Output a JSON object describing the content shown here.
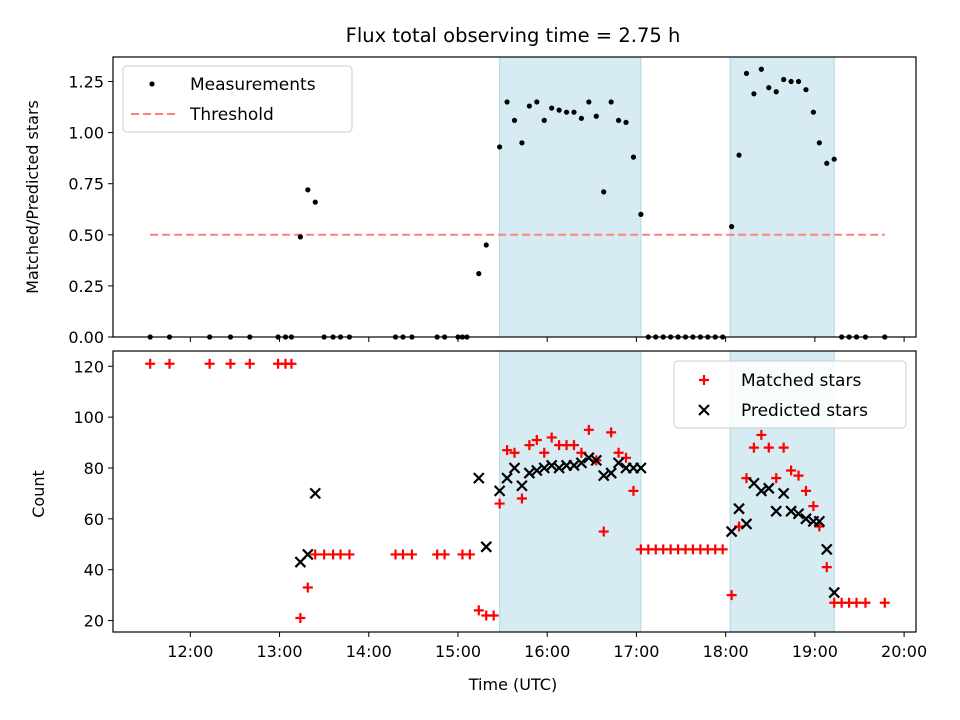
{
  "title": "Flux total observing time = 2.75 h",
  "colors": {
    "shade": "#add8e6",
    "threshold": "#ff7f7f",
    "matched": "#ff0000",
    "predicted": "#000000",
    "measurement": "#000000"
  },
  "chart_data": [
    {
      "type": "scatter",
      "ylabel": "Matched/Predicted stars",
      "xlim": [
        "11:08",
        "20:08"
      ],
      "ylim": [
        0,
        1.37
      ],
      "y_ticks": [
        0,
        0.25,
        0.5,
        0.75,
        1.0,
        1.25
      ],
      "y_tick_labels": [
        "0.00",
        "0.25",
        "0.50",
        "0.75",
        "1.00",
        "1.25"
      ],
      "legend": [
        "Measurements",
        "Threshold"
      ],
      "legend_position": "top-left",
      "shaded_intervals": [
        [
          "15:28",
          "17:03"
        ],
        [
          "18:03",
          "19:13"
        ]
      ],
      "threshold": {
        "value": 0.5,
        "x": [
          "11:33",
          "19:47"
        ]
      },
      "series": [
        {
          "name": "Measurements",
          "points": [
            [
              "11:33",
              0
            ],
            [
              "11:46",
              0
            ],
            [
              "12:13",
              0
            ],
            [
              "12:27",
              0
            ],
            [
              "12:40",
              0
            ],
            [
              "12:59",
              0
            ],
            [
              "13:04",
              0
            ],
            [
              "13:08",
              0
            ],
            [
              "13:14",
              0.49
            ],
            [
              "13:19",
              0.72
            ],
            [
              "13:24",
              0.66
            ],
            [
              "13:30",
              0
            ],
            [
              "13:36",
              0
            ],
            [
              "13:41",
              0
            ],
            [
              "13:47",
              0
            ],
            [
              "14:18",
              0
            ],
            [
              "14:23",
              0
            ],
            [
              "14:29",
              0
            ],
            [
              "14:46",
              0
            ],
            [
              "14:51",
              0
            ],
            [
              "15:00",
              0
            ],
            [
              "15:03",
              0
            ],
            [
              "15:06",
              0
            ],
            [
              "15:14",
              0.31
            ],
            [
              "15:19",
              0.45
            ],
            [
              "15:28",
              0.93
            ],
            [
              "15:33",
              1.15
            ],
            [
              "15:38",
              1.06
            ],
            [
              "15:43",
              0.95
            ],
            [
              "15:48",
              1.13
            ],
            [
              "15:53",
              1.15
            ],
            [
              "15:58",
              1.06
            ],
            [
              "16:03",
              1.12
            ],
            [
              "16:08",
              1.11
            ],
            [
              "16:13",
              1.1
            ],
            [
              "16:18",
              1.1
            ],
            [
              "16:23",
              1.07
            ],
            [
              "16:28",
              1.15
            ],
            [
              "16:33",
              1.08
            ],
            [
              "16:38",
              0.71
            ],
            [
              "16:43",
              1.15
            ],
            [
              "16:48",
              1.06
            ],
            [
              "16:53",
              1.05
            ],
            [
              "16:58",
              0.88
            ],
            [
              "17:03",
              0.6
            ],
            [
              "17:08",
              0
            ],
            [
              "17:13",
              0
            ],
            [
              "17:18",
              0
            ],
            [
              "17:23",
              0
            ],
            [
              "17:28",
              0
            ],
            [
              "17:33",
              0
            ],
            [
              "17:38",
              0
            ],
            [
              "17:43",
              0
            ],
            [
              "17:48",
              0
            ],
            [
              "17:53",
              0
            ],
            [
              "17:58",
              0
            ],
            [
              "18:04",
              0.54
            ],
            [
              "18:09",
              0.89
            ],
            [
              "18:14",
              1.29
            ],
            [
              "18:19",
              1.19
            ],
            [
              "18:24",
              1.31
            ],
            [
              "18:29",
              1.22
            ],
            [
              "18:34",
              1.2
            ],
            [
              "18:39",
              1.26
            ],
            [
              "18:44",
              1.25
            ],
            [
              "18:49",
              1.25
            ],
            [
              "18:54",
              1.21
            ],
            [
              "18:59",
              1.1
            ],
            [
              "19:03",
              0.95
            ],
            [
              "19:08",
              0.85
            ],
            [
              "19:13",
              0.87
            ],
            [
              "19:18",
              0
            ],
            [
              "19:23",
              0
            ],
            [
              "19:28",
              0
            ],
            [
              "19:34",
              0
            ],
            [
              "19:47",
              0
            ]
          ]
        }
      ]
    },
    {
      "type": "scatter",
      "xlabel": "Time (UTC)",
      "ylabel": "Count",
      "xlim": [
        "11:08",
        "20:08"
      ],
      "ylim": [
        15.5,
        126
      ],
      "y_ticks": [
        20,
        40,
        60,
        80,
        100,
        120
      ],
      "y_tick_labels": [
        "20",
        "40",
        "60",
        "80",
        "100",
        "120"
      ],
      "x_ticks": [
        "12:00",
        "13:00",
        "14:00",
        "15:00",
        "16:00",
        "17:00",
        "18:00",
        "19:00",
        "20:00"
      ],
      "legend": [
        "Matched stars",
        "Predicted stars"
      ],
      "legend_position": "top-right",
      "shaded_intervals": [
        [
          "15:28",
          "17:03"
        ],
        [
          "18:03",
          "19:13"
        ]
      ],
      "series": [
        {
          "name": "Matched stars",
          "points": [
            [
              "11:33",
              121
            ],
            [
              "11:46",
              121
            ],
            [
              "12:13",
              121
            ],
            [
              "12:27",
              121
            ],
            [
              "12:40",
              121
            ],
            [
              "12:59",
              121
            ],
            [
              "13:04",
              121
            ],
            [
              "13:08",
              121
            ],
            [
              "13:14",
              21
            ],
            [
              "13:19",
              33
            ],
            [
              "13:24",
              46
            ],
            [
              "13:30",
              46
            ],
            [
              "13:36",
              46
            ],
            [
              "13:41",
              46
            ],
            [
              "13:47",
              46
            ],
            [
              "14:18",
              46
            ],
            [
              "14:23",
              46
            ],
            [
              "14:29",
              46
            ],
            [
              "14:46",
              46
            ],
            [
              "14:51",
              46
            ],
            [
              "15:03",
              46
            ],
            [
              "15:08",
              46
            ],
            [
              "15:14",
              24
            ],
            [
              "15:19",
              22
            ],
            [
              "15:24",
              22
            ],
            [
              "15:28",
              66
            ],
            [
              "15:33",
              87
            ],
            [
              "15:38",
              86
            ],
            [
              "15:43",
              68
            ],
            [
              "15:48",
              89
            ],
            [
              "15:53",
              91
            ],
            [
              "15:58",
              86
            ],
            [
              "16:03",
              92
            ],
            [
              "16:08",
              89
            ],
            [
              "16:13",
              89
            ],
            [
              "16:18",
              89
            ],
            [
              "16:23",
              86
            ],
            [
              "16:28",
              95
            ],
            [
              "16:33",
              83
            ],
            [
              "16:38",
              55
            ],
            [
              "16:43",
              94
            ],
            [
              "16:48",
              86
            ],
            [
              "16:53",
              84
            ],
            [
              "16:58",
              71
            ],
            [
              "17:03",
              48
            ],
            [
              "17:08",
              48
            ],
            [
              "17:13",
              48
            ],
            [
              "17:18",
              48
            ],
            [
              "17:23",
              48
            ],
            [
              "17:28",
              48
            ],
            [
              "17:33",
              48
            ],
            [
              "17:38",
              48
            ],
            [
              "17:43",
              48
            ],
            [
              "17:48",
              48
            ],
            [
              "17:53",
              48
            ],
            [
              "17:58",
              48
            ],
            [
              "18:04",
              30
            ],
            [
              "18:09",
              57
            ],
            [
              "18:14",
              76
            ],
            [
              "18:19",
              88
            ],
            [
              "18:24",
              93
            ],
            [
              "18:29",
              88
            ],
            [
              "18:34",
              76
            ],
            [
              "18:39",
              88
            ],
            [
              "18:44",
              79
            ],
            [
              "18:49",
              77
            ],
            [
              "18:54",
              71
            ],
            [
              "18:59",
              65
            ],
            [
              "19:03",
              57
            ],
            [
              "19:08",
              41
            ],
            [
              "19:13",
              27
            ],
            [
              "19:18",
              27
            ],
            [
              "19:23",
              27
            ],
            [
              "19:28",
              27
            ],
            [
              "19:34",
              27
            ],
            [
              "19:47",
              27
            ]
          ]
        },
        {
          "name": "Predicted stars",
          "points": [
            [
              "13:14",
              43
            ],
            [
              "13:19",
              46
            ],
            [
              "13:24",
              70
            ],
            [
              "15:14",
              76
            ],
            [
              "15:19",
              49
            ],
            [
              "15:28",
              71
            ],
            [
              "15:33",
              76
            ],
            [
              "15:38",
              80
            ],
            [
              "15:43",
              73
            ],
            [
              "15:48",
              78
            ],
            [
              "15:53",
              79
            ],
            [
              "15:58",
              80
            ],
            [
              "16:03",
              81
            ],
            [
              "16:08",
              80
            ],
            [
              "16:13",
              81
            ],
            [
              "16:18",
              81
            ],
            [
              "16:23",
              82
            ],
            [
              "16:28",
              84
            ],
            [
              "16:33",
              83
            ],
            [
              "16:38",
              77
            ],
            [
              "16:43",
              78
            ],
            [
              "16:48",
              82
            ],
            [
              "16:53",
              80
            ],
            [
              "16:58",
              80
            ],
            [
              "17:03",
              80
            ],
            [
              "18:04",
              55
            ],
            [
              "18:09",
              64
            ],
            [
              "18:14",
              58
            ],
            [
              "18:19",
              74
            ],
            [
              "18:24",
              71
            ],
            [
              "18:29",
              72
            ],
            [
              "18:34",
              63
            ],
            [
              "18:39",
              70
            ],
            [
              "18:44",
              63
            ],
            [
              "18:49",
              62
            ],
            [
              "18:54",
              60
            ],
            [
              "18:59",
              59
            ],
            [
              "19:03",
              59
            ],
            [
              "19:08",
              48
            ],
            [
              "19:13",
              31
            ]
          ]
        }
      ]
    }
  ]
}
